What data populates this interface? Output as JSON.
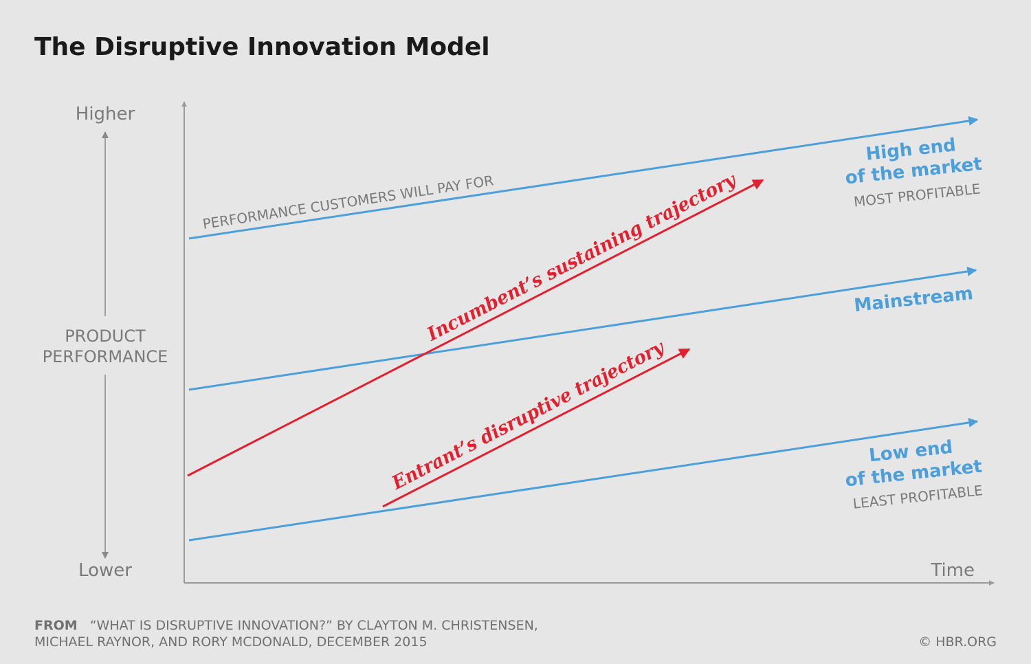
{
  "title": "The Disruptive Innovation Model",
  "y_axis": {
    "top": "Higher",
    "bottom": "Lower",
    "label_line1": "PRODUCT",
    "label_line2": "PERFORMANCE"
  },
  "x_axis": {
    "label": "Time"
  },
  "colors": {
    "background": "#e6e6e6",
    "axis": "#9a9a9a",
    "market_lines": "#4d9fd9",
    "trajectories": "#e3202f"
  },
  "lines": {
    "high_end": {
      "line_label": "PERFORMANCE CUSTOMERS WILL PAY FOR",
      "name_line1": "High end",
      "name_line2": "of the market",
      "sub": "MOST PROFITABLE"
    },
    "mainstream": {
      "name": "Mainstream"
    },
    "low_end": {
      "name_line1": "Low end",
      "name_line2": "of the market",
      "sub": "LEAST PROFITABLE"
    }
  },
  "trajectories": {
    "incumbent": "Incumbent’s sustaining trajectory",
    "entrant": "Entrant’s disruptive trajectory"
  },
  "source": {
    "from": "FROM",
    "line1": "“WHAT IS DISRUPTIVE INNOVATION?” BY CLAYTON M. CHRISTENSEN,",
    "line2": "MICHAEL RAYNOR, AND RORY MCDONALD, DECEMBER 2015",
    "credit": "© HBR.ORG"
  }
}
